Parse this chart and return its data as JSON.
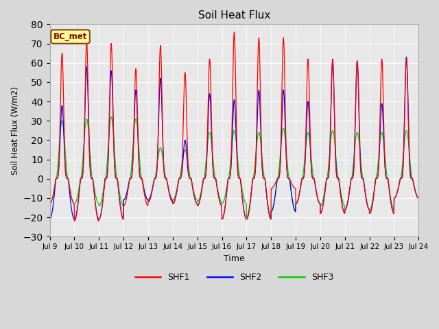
{
  "title": "Soil Heat Flux",
  "ylabel": "Soil Heat Flux (W/m2)",
  "xlabel": "Time",
  "annotation": "BC_met",
  "ylim": [
    -30,
    80
  ],
  "yticks": [
    -30,
    -20,
    -10,
    0,
    10,
    20,
    30,
    40,
    50,
    60,
    70,
    80
  ],
  "legend_labels": [
    "SHF1",
    "SHF2",
    "SHF3"
  ],
  "legend_colors": [
    "#ff0000",
    "#0000ff",
    "#00cc00"
  ],
  "background_color": "#d8d8d8",
  "plot_bg_color": "#e8e8e8",
  "grid_color": "#ffffff",
  "n_days": 15,
  "start_day": 9,
  "points_per_day": 144,
  "shf1_day_peaks": [
    65,
    71,
    70,
    57,
    69,
    55,
    62,
    76,
    73,
    73,
    62,
    62,
    61,
    62,
    62
  ],
  "shf1_night_mins": [
    -13,
    -22,
    -21,
    -14,
    -11,
    -13,
    -14,
    -21,
    -21,
    -5,
    -13,
    -18,
    -16,
    -18,
    -10
  ],
  "shf2_day_peaks": [
    38,
    58,
    56,
    46,
    52,
    20,
    44,
    41,
    46,
    46,
    40,
    61,
    61,
    39,
    63
  ],
  "shf2_night_mins": [
    -21,
    -21,
    -21,
    -11,
    -12,
    -13,
    -14,
    -21,
    -21,
    -17,
    -13,
    -18,
    -16,
    -18,
    -10
  ],
  "shf3_day_peaks": [
    30,
    31,
    32,
    31,
    16,
    15,
    24,
    25,
    24,
    26,
    24,
    25,
    24,
    24,
    25
  ],
  "shf3_night_mins": [
    -13,
    -13,
    -14,
    -11,
    -11,
    -11,
    -12,
    -13,
    -20,
    -17,
    -13,
    -14,
    -16,
    -16,
    -10
  ],
  "sharpness1": 6,
  "sharpness2": 5,
  "sharpness3": 2
}
